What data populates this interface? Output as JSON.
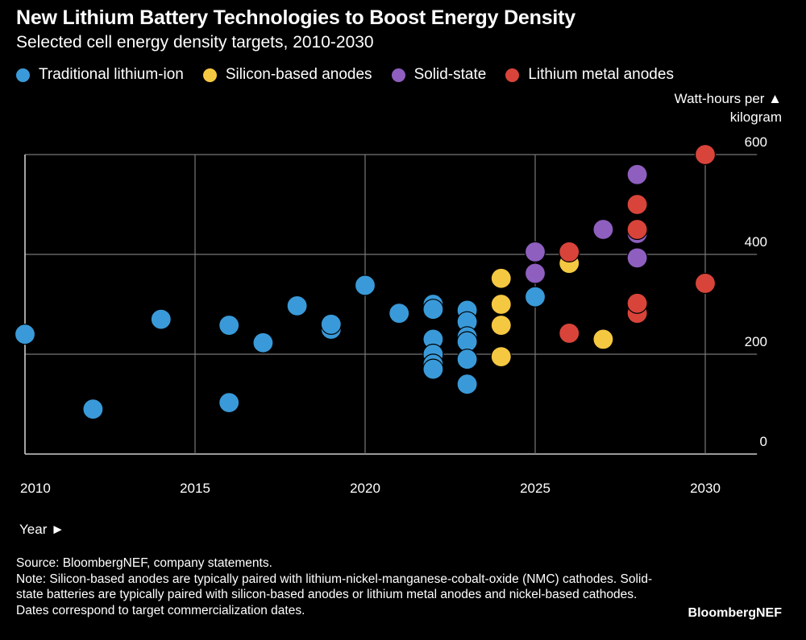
{
  "header": {
    "title": "New Lithium Battery Technologies to Boost Energy Density",
    "subtitle": "Selected cell energy density targets, 2010-2030"
  },
  "footer": {
    "source": "Source: BloombergNEF, company statements.",
    "note": "Note: Silicon-based anodes are typically paired with lithium-nickel-manganese-cobalt-oxide (NMC) cathodes. Solid-state batteries are typically paired with silicon-based anodes or lithium metal anodes and nickel-based cathodes. Dates correspond to target commercialization dates.",
    "brand": "BloombergNEF"
  },
  "chart_data": {
    "type": "scatter",
    "title": "New Lithium Battery Technologies to Boost Energy Density",
    "subtitle": "Selected cell energy density targets, 2010-2030",
    "xlabel": "Year ►",
    "ylabel": "Watt-hours per ▲ kilogram",
    "xlim": [
      2010,
      2031
    ],
    "ylim": [
      0,
      600
    ],
    "x_ticks": [
      2010,
      2015,
      2020,
      2025,
      2030
    ],
    "y_ticks": [
      0,
      200,
      400,
      600
    ],
    "grid": true,
    "legend_position": "top-left",
    "series": [
      {
        "name": "Traditional lithium-ion",
        "color": "#3a9ad9",
        "points": [
          [
            2010,
            240
          ],
          [
            2012,
            90
          ],
          [
            2014,
            270
          ],
          [
            2016,
            258
          ],
          [
            2016,
            103
          ],
          [
            2017,
            223
          ],
          [
            2018,
            297
          ],
          [
            2019,
            250
          ],
          [
            2019,
            260
          ],
          [
            2020,
            338
          ],
          [
            2021,
            282
          ],
          [
            2022,
            300
          ],
          [
            2022,
            290
          ],
          [
            2022,
            230
          ],
          [
            2022,
            200
          ],
          [
            2022,
            180
          ],
          [
            2022,
            170
          ],
          [
            2023,
            288
          ],
          [
            2023,
            265
          ],
          [
            2023,
            235
          ],
          [
            2023,
            225
          ],
          [
            2023,
            190
          ],
          [
            2023,
            140
          ],
          [
            2025,
            315
          ]
        ]
      },
      {
        "name": "Silicon-based anodes",
        "color": "#f5c842",
        "points": [
          [
            2024,
            352
          ],
          [
            2024,
            300
          ],
          [
            2024,
            258
          ],
          [
            2024,
            195
          ],
          [
            2026,
            382
          ],
          [
            2027,
            230
          ]
        ]
      },
      {
        "name": "Solid-state",
        "color": "#8e5fbf",
        "points": [
          [
            2025,
            405
          ],
          [
            2025,
            362
          ],
          [
            2027,
            450
          ],
          [
            2028,
            560
          ],
          [
            2028,
            442
          ],
          [
            2028,
            393
          ]
        ]
      },
      {
        "name": "Lithium metal anodes",
        "color": "#d9443a",
        "points": [
          [
            2026,
            405
          ],
          [
            2026,
            242
          ],
          [
            2028,
            500
          ],
          [
            2028,
            450
          ],
          [
            2028,
            282
          ],
          [
            2028,
            302
          ],
          [
            2030,
            600
          ],
          [
            2030,
            342
          ]
        ]
      }
    ]
  }
}
